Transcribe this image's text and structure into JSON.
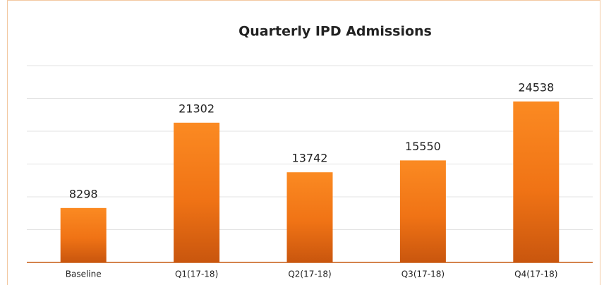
{
  "chart_data": {
    "type": "bar",
    "title": "Quarterly IPD Admissions",
    "categories": [
      "Baseline",
      "Q1(17-18)",
      "Q2(17-18)",
      "Q3(17-18)",
      "Q4(17-18)"
    ],
    "values": [
      8298,
      21302,
      13742,
      15550,
      24538
    ],
    "color": "#f47a1a",
    "ylim": [
      0,
      30000
    ],
    "yticks": [
      0,
      5000,
      10000,
      15000,
      20000,
      25000,
      30000
    ],
    "grid": true
  }
}
